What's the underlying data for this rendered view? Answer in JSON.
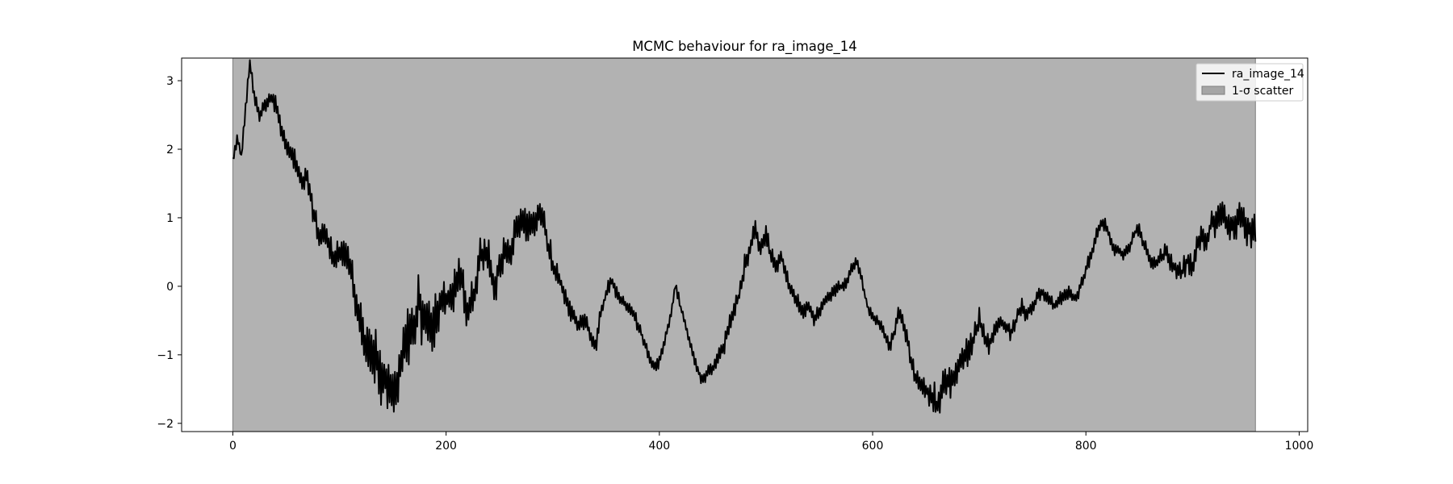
{
  "chart_data": {
    "type": "line",
    "title": "MCMC behaviour for ra_image_14",
    "xlabel": "",
    "ylabel": "",
    "xlim": [
      -48,
      1008
    ],
    "ylim": [
      -2.12,
      3.33
    ],
    "x_ticks": [
      0,
      200,
      400,
      600,
      800,
      1000
    ],
    "y_ticks": [
      -2,
      -1,
      0,
      1,
      2,
      3
    ],
    "x_tick_labels": [
      "0",
      "200",
      "400",
      "600",
      "800",
      "1000"
    ],
    "y_tick_labels": [
      "−2",
      "−1",
      "0",
      "1",
      "2",
      "3"
    ],
    "grid": false,
    "legend_position": "top-right",
    "legend": [
      {
        "label": "ra_image_14",
        "kind": "line"
      },
      {
        "label": "1-σ scatter",
        "kind": "patch"
      }
    ],
    "colors": {
      "line": "#000000",
      "scatter_band": "#b2b2b2",
      "scatter_edge": "#7f7f7f",
      "legend_patch": "#a6a6a6"
    },
    "band": {
      "name": "1-σ scatter",
      "x_range": [
        0,
        959
      ],
      "y_range": [
        -2.12,
        3.33
      ]
    },
    "series": [
      {
        "name": "ra_image_14",
        "step": 1,
        "keypoints": [
          [
            0,
            1.82
          ],
          [
            4,
            2.15
          ],
          [
            8,
            1.9
          ],
          [
            12,
            2.6
          ],
          [
            16,
            3.25
          ],
          [
            20,
            2.8
          ],
          [
            25,
            2.5
          ],
          [
            30,
            2.6
          ],
          [
            35,
            2.75
          ],
          [
            40,
            2.7
          ],
          [
            45,
            2.3
          ],
          [
            50,
            2.0
          ],
          [
            55,
            1.9
          ],
          [
            60,
            1.75
          ],
          [
            65,
            1.55
          ],
          [
            70,
            1.6
          ],
          [
            75,
            1.1
          ],
          [
            80,
            0.8
          ],
          [
            85,
            0.75
          ],
          [
            90,
            0.6
          ],
          [
            95,
            0.35
          ],
          [
            100,
            0.5
          ],
          [
            105,
            0.55
          ],
          [
            110,
            0.25
          ],
          [
            115,
            -0.2
          ],
          [
            120,
            -0.6
          ],
          [
            125,
            -0.8
          ],
          [
            130,
            -0.9
          ],
          [
            135,
            -1.1
          ],
          [
            140,
            -1.3
          ],
          [
            145,
            -1.5
          ],
          [
            150,
            -1.6
          ],
          [
            155,
            -1.3
          ],
          [
            160,
            -0.9
          ],
          [
            165,
            -0.7
          ],
          [
            170,
            -0.5
          ],
          [
            175,
            -0.3
          ],
          [
            180,
            -0.5
          ],
          [
            185,
            -0.6
          ],
          [
            190,
            -0.4
          ],
          [
            195,
            -0.3
          ],
          [
            200,
            -0.2
          ],
          [
            205,
            -0.1
          ],
          [
            210,
            0.05
          ],
          [
            215,
            0.1
          ],
          [
            220,
            -0.4
          ],
          [
            225,
            -0.2
          ],
          [
            230,
            0.3
          ],
          [
            235,
            0.5
          ],
          [
            240,
            0.4
          ],
          [
            245,
            0.0
          ],
          [
            250,
            0.3
          ],
          [
            255,
            0.6
          ],
          [
            260,
            0.4
          ],
          [
            265,
            0.8
          ],
          [
            270,
            1.0
          ],
          [
            275,
            0.9
          ],
          [
            280,
            0.85
          ],
          [
            285,
            1.0
          ],
          [
            290,
            1.1
          ],
          [
            295,
            0.7
          ],
          [
            300,
            0.3
          ],
          [
            305,
            0.1
          ],
          [
            310,
            -0.1
          ],
          [
            315,
            -0.3
          ],
          [
            320,
            -0.4
          ],
          [
            325,
            -0.6
          ],
          [
            330,
            -0.5
          ],
          [
            335,
            -0.7
          ],
          [
            340,
            -0.9
          ],
          [
            345,
            -0.4
          ],
          [
            350,
            -0.1
          ],
          [
            355,
            0.1
          ],
          [
            360,
            -0.1
          ],
          [
            365,
            -0.2
          ],
          [
            370,
            -0.3
          ],
          [
            375,
            -0.35
          ],
          [
            380,
            -0.6
          ],
          [
            385,
            -0.8
          ],
          [
            390,
            -1.0
          ],
          [
            395,
            -1.2
          ],
          [
            400,
            -1.1
          ],
          [
            405,
            -0.8
          ],
          [
            410,
            -0.5
          ],
          [
            415,
            0.0
          ],
          [
            420,
            -0.3
          ],
          [
            425,
            -0.6
          ],
          [
            430,
            -0.9
          ],
          [
            435,
            -1.2
          ],
          [
            440,
            -1.35
          ],
          [
            445,
            -1.25
          ],
          [
            450,
            -1.2
          ],
          [
            455,
            -1.0
          ],
          [
            460,
            -0.9
          ],
          [
            465,
            -0.6
          ],
          [
            470,
            -0.4
          ],
          [
            475,
            -0.1
          ],
          [
            480,
            0.3
          ],
          [
            485,
            0.6
          ],
          [
            490,
            0.8
          ],
          [
            495,
            0.5
          ],
          [
            500,
            0.8
          ],
          [
            505,
            0.4
          ],
          [
            510,
            0.3
          ],
          [
            515,
            0.4
          ],
          [
            520,
            0.1
          ],
          [
            525,
            -0.1
          ],
          [
            530,
            -0.2
          ],
          [
            535,
            -0.4
          ],
          [
            540,
            -0.3
          ],
          [
            545,
            -0.5
          ],
          [
            550,
            -0.35
          ],
          [
            555,
            -0.2
          ],
          [
            560,
            -0.1
          ],
          [
            565,
            -0.05
          ],
          [
            570,
            0.0
          ],
          [
            575,
            0.05
          ],
          [
            580,
            0.25
          ],
          [
            585,
            0.35
          ],
          [
            590,
            0.1
          ],
          [
            595,
            -0.3
          ],
          [
            600,
            -0.45
          ],
          [
            605,
            -0.5
          ],
          [
            610,
            -0.6
          ],
          [
            615,
            -0.9
          ],
          [
            620,
            -0.7
          ],
          [
            625,
            -0.4
          ],
          [
            630,
            -0.6
          ],
          [
            635,
            -1.0
          ],
          [
            640,
            -1.35
          ],
          [
            645,
            -1.4
          ],
          [
            650,
            -1.5
          ],
          [
            655,
            -1.6
          ],
          [
            660,
            -1.7
          ],
          [
            665,
            -1.5
          ],
          [
            670,
            -1.4
          ],
          [
            675,
            -1.3
          ],
          [
            680,
            -1.2
          ],
          [
            685,
            -1.1
          ],
          [
            690,
            -0.9
          ],
          [
            695,
            -0.8
          ],
          [
            700,
            -0.5
          ],
          [
            705,
            -0.7
          ],
          [
            710,
            -0.85
          ],
          [
            715,
            -0.6
          ],
          [
            720,
            -0.5
          ],
          [
            725,
            -0.6
          ],
          [
            730,
            -0.7
          ],
          [
            735,
            -0.5
          ],
          [
            740,
            -0.3
          ],
          [
            745,
            -0.4
          ],
          [
            750,
            -0.3
          ],
          [
            755,
            -0.15
          ],
          [
            760,
            -0.1
          ],
          [
            765,
            -0.2
          ],
          [
            770,
            -0.3
          ],
          [
            775,
            -0.2
          ],
          [
            780,
            -0.15
          ],
          [
            785,
            -0.1
          ],
          [
            790,
            -0.2
          ],
          [
            795,
            0.0
          ],
          [
            800,
            0.25
          ],
          [
            805,
            0.45
          ],
          [
            810,
            0.75
          ],
          [
            815,
            0.95
          ],
          [
            820,
            0.85
          ],
          [
            825,
            0.6
          ],
          [
            830,
            0.5
          ],
          [
            835,
            0.45
          ],
          [
            840,
            0.55
          ],
          [
            845,
            0.75
          ],
          [
            850,
            0.85
          ],
          [
            855,
            0.6
          ],
          [
            860,
            0.4
          ],
          [
            865,
            0.3
          ],
          [
            870,
            0.4
          ],
          [
            875,
            0.5
          ],
          [
            880,
            0.35
          ],
          [
            885,
            0.25
          ],
          [
            890,
            0.2
          ],
          [
            895,
            0.35
          ],
          [
            900,
            0.3
          ],
          [
            905,
            0.6
          ],
          [
            910,
            0.7
          ],
          [
            915,
            0.8
          ],
          [
            920,
            0.95
          ],
          [
            925,
            1.05
          ],
          [
            930,
            1.0
          ],
          [
            935,
            0.9
          ],
          [
            940,
            0.85
          ],
          [
            945,
            1.0
          ],
          [
            950,
            0.9
          ],
          [
            955,
            0.7
          ],
          [
            959,
            0.9
          ]
        ],
        "amplitude": [
          [
            0,
            0.15
          ],
          [
            60,
            0.35
          ],
          [
            100,
            0.4
          ],
          [
            130,
            0.8
          ],
          [
            170,
            0.9
          ],
          [
            200,
            0.7
          ],
          [
            230,
            0.6
          ],
          [
            270,
            0.55
          ],
          [
            300,
            0.35
          ],
          [
            360,
            0.2
          ],
          [
            430,
            0.15
          ],
          [
            480,
            0.35
          ],
          [
            520,
            0.25
          ],
          [
            600,
            0.15
          ],
          [
            640,
            0.3
          ],
          [
            670,
            0.55
          ],
          [
            720,
            0.25
          ],
          [
            800,
            0.2
          ],
          [
            860,
            0.2
          ],
          [
            900,
            0.35
          ],
          [
            940,
            0.5
          ],
          [
            959,
            0.6
          ]
        ],
        "min_value": -2.12,
        "max_value": 3.3
      }
    ]
  }
}
